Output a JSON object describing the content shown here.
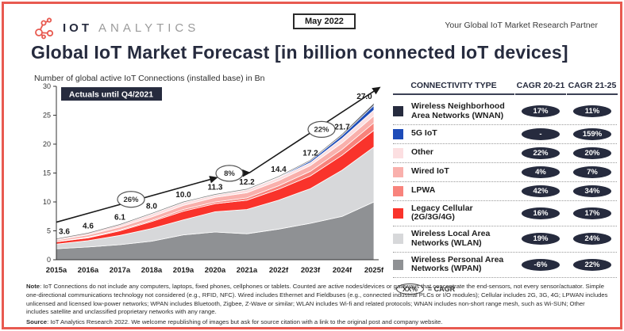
{
  "header": {
    "brand_bold": "IOT",
    "brand_light": "ANALYTICS",
    "date_badge": "May 2022",
    "tagline": "Your Global IoT Market Research Partner"
  },
  "title": "Global IoT Market Forecast [in billion connected IoT devices]",
  "subtitle": "Number of global active IoT Connections (installed base) in Bn",
  "chart_data": {
    "type": "area",
    "stacked": true,
    "title": "Global IoT Market Forecast [in billion connected IoT devices]",
    "ylabel": "Number of global active IoT Connections (installed base) in Bn",
    "ylim": [
      0,
      30
    ],
    "yticks": [
      0,
      5,
      10,
      15,
      20,
      25,
      30
    ],
    "grid": false,
    "categories": [
      "2015a",
      "2016a",
      "2017a",
      "2018a",
      "2019a",
      "2020a",
      "2021a",
      "2022f",
      "2023f",
      "2024f",
      "2025f"
    ],
    "totals": [
      3.6,
      4.6,
      6.1,
      8.0,
      10.0,
      11.3,
      12.2,
      14.4,
      17.2,
      21.7,
      27.0
    ],
    "series": [
      {
        "name": "Wireless Personal Area Networks (WPAN)",
        "color": "#8f9194",
        "values": [
          1.9,
          2.2,
          2.6,
          3.2,
          4.3,
          4.8,
          4.5,
          5.3,
          6.3,
          7.5,
          10.0
        ]
      },
      {
        "name": "Wireless Local Area Networks (WLAN)",
        "color": "#d7d8da",
        "values": [
          0.8,
          1.1,
          1.6,
          2.2,
          2.6,
          3.5,
          4.2,
          5.0,
          6.0,
          8.0,
          9.5
        ]
      },
      {
        "name": "Legacy Cellular (2G/3G/4G)",
        "color": "#f9332b",
        "values": [
          0.4,
          0.5,
          0.8,
          1.2,
          1.5,
          1.4,
          1.6,
          1.9,
          2.2,
          2.6,
          2.9
        ]
      },
      {
        "name": "LPWA",
        "color": "#f8837c",
        "values": [
          0.05,
          0.1,
          0.15,
          0.2,
          0.3,
          0.3,
          0.4,
          0.6,
          0.8,
          1.0,
          1.3
        ]
      },
      {
        "name": "Wired IoT",
        "color": "#f9b0ac",
        "values": [
          0.25,
          0.4,
          0.5,
          0.6,
          0.7,
          0.8,
          0.9,
          0.9,
          1.0,
          1.1,
          1.2
        ]
      },
      {
        "name": "Other",
        "color": "#fcdfe1",
        "values": [
          0.2,
          0.3,
          0.4,
          0.5,
          0.5,
          0.4,
          0.5,
          0.5,
          0.5,
          0.8,
          1.0
        ]
      },
      {
        "name": "5G IoT",
        "color": "#1d4bb8",
        "values": [
          0,
          0,
          0,
          0,
          0,
          0,
          0.01,
          0.1,
          0.3,
          0.5,
          0.8
        ]
      },
      {
        "name": "Wireless Neighborhood Area Networks (WNAN)",
        "color": "#262b3e",
        "values": [
          0,
          0,
          0.05,
          0.1,
          0.1,
          0.1,
          0.09,
          0.1,
          0.1,
          0.2,
          0.3
        ]
      }
    ],
    "annotations": {
      "badge": "Actuals until Q4/2021",
      "cagr_bubbles": [
        {
          "label": "26%",
          "x": 2017.35,
          "y": 10.45
        },
        {
          "label": "8%",
          "x": 2020.45,
          "y": 14.95
        },
        {
          "label": "22%",
          "x": 2023.35,
          "y": 22.55
        }
      ],
      "trend_arrows": [
        {
          "x1": 2015.0,
          "y1": 6.5,
          "x2": 2020.05,
          "y2": 14.2
        },
        {
          "x1": 2020.78,
          "y1": 14.95,
          "x2": 2021.08,
          "y2": 15.05
        },
        {
          "x1": 2021.08,
          "y1": 15.05,
          "x2": 2025.18,
          "y2": 29.8
        }
      ]
    }
  },
  "table": {
    "header_type": "CONNECTIVITY TYPE",
    "header_cagr1": "CAGR 20-21",
    "header_cagr2": "CAGR 21-25",
    "rows": [
      {
        "label": "Wireless Neighborhood Area Networks (WNAN)",
        "color": "#262b3e",
        "cagr_20_21": "17%",
        "cagr_21_25": "11%"
      },
      {
        "label": "5G IoT",
        "color": "#1d4bb8",
        "cagr_20_21": "-",
        "cagr_21_25": "159%"
      },
      {
        "label": "Other",
        "color": "#fcdfe1",
        "cagr_20_21": "22%",
        "cagr_21_25": "20%"
      },
      {
        "label": "Wired IoT",
        "color": "#f9b0ac",
        "cagr_20_21": "4%",
        "cagr_21_25": "7%"
      },
      {
        "label": "LPWA",
        "color": "#f8837c",
        "cagr_20_21": "42%",
        "cagr_21_25": "34%"
      },
      {
        "label": "Legacy Cellular (2G/3G/4G)",
        "color": "#f9332b",
        "cagr_20_21": "16%",
        "cagr_21_25": "17%"
      },
      {
        "label": "Wireless Local Area Networks (WLAN)",
        "color": "#d7d8da",
        "cagr_20_21": "19%",
        "cagr_21_25": "24%"
      },
      {
        "label": "Wireless Personal Area Networks (WPAN)",
        "color": "#8f9194",
        "cagr_20_21": "-6%",
        "cagr_21_25": "22%"
      }
    ],
    "cagr_key_oval": "XX%",
    "cagr_key_text": "= CAGR"
  },
  "footer": {
    "note_label": "Note",
    "note_text": ": IoT Connections do not include any computers, laptops, fixed phones, cellphones or tablets. Counted are active nodes/devices or gateways that concentrate the end-sensors, not every sensor/actuator. Simple one-directional communications technology not considered (e.g., RFID, NFC). Wired includes Ethernet and Fieldbuses (e.g., connected industrial PLCs or I/O modules); Cellular includes 2G, 3G, 4G; LPWAN includes unlicensed and licensed low-power networks; WPAN includes Bluetooth, Zigbee, Z-Wave or similar; WLAN includes Wi-fi and related protocols; WNAN includes non-short range mesh, such as Wi-SUN; Other includes satellite and unclassified proprietary networks with any range.",
    "source_label": "Source",
    "source_text": ": IoT Analytics Research 2022. We welcome republishing of images but ask for source citation with a link to the original post and company website."
  },
  "colors": {
    "accent_red": "#e85a50",
    "navy": "#262b3e",
    "pill_bg": "#262b3e"
  }
}
